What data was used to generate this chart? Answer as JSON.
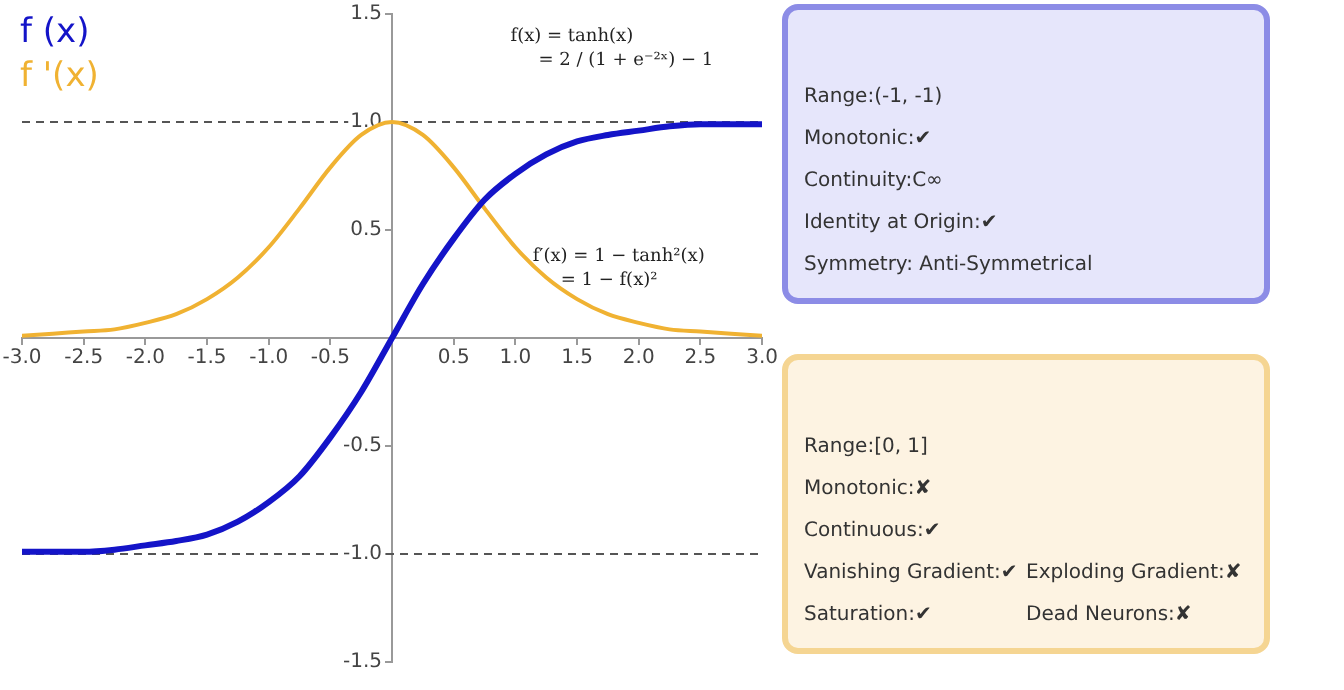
{
  "chart_data": [
    {
      "type": "line",
      "legend": "top left",
      "marker": "none",
      "line_style": "solid",
      "grid": false,
      "x": [
        -3,
        -2.75,
        -2.5,
        -2.25,
        -2,
        -1.75,
        -1.5,
        -1.25,
        -1,
        -0.75,
        -0.5,
        -0.25,
        0,
        0.25,
        0.5,
        0.75,
        1,
        1.25,
        1.5,
        1.75,
        2,
        2.25,
        2.5,
        2.75,
        3
      ],
      "series": [
        {
          "name": "f (x)",
          "color": "#1414c8",
          "values": [
            -0.99,
            -0.99,
            -0.99,
            -0.98,
            -0.96,
            -0.94,
            -0.91,
            -0.85,
            -0.76,
            -0.64,
            -0.46,
            -0.25,
            0,
            0.25,
            0.46,
            0.64,
            0.76,
            0.85,
            0.91,
            0.94,
            0.96,
            0.98,
            0.99,
            0.99,
            0.99
          ]
        },
        {
          "name": "f '(x)",
          "color": "#f0b232",
          "values": [
            0.01,
            0.02,
            0.03,
            0.04,
            0.07,
            0.11,
            0.18,
            0.28,
            0.42,
            0.6,
            0.79,
            0.94,
            1,
            0.94,
            0.79,
            0.6,
            0.42,
            0.28,
            0.18,
            0.11,
            0.07,
            0.04,
            0.03,
            0.02,
            0.01
          ]
        }
      ],
      "xlim": [
        -3,
        3
      ],
      "ylim": [
        -1.5,
        1.5
      ],
      "xticks": [
        {
          "value": -3,
          "label": "-3.0"
        },
        {
          "value": -2.5,
          "label": "-2.5"
        },
        {
          "value": -2,
          "label": "-2.0"
        },
        {
          "value": -1.5,
          "label": "-1.5"
        },
        {
          "value": -1,
          "label": "-1.0"
        },
        {
          "value": -0.5,
          "label": "-0.5"
        },
        {
          "value": 0.5,
          "label": "0.5"
        },
        {
          "value": 1,
          "label": "1.0"
        },
        {
          "value": 1.5,
          "label": "1.5"
        },
        {
          "value": 2,
          "label": "2.0"
        },
        {
          "value": 2.5,
          "label": "2.5"
        },
        {
          "value": 3,
          "label": "3.0"
        }
      ],
      "yticks": [
        {
          "value": -1.5,
          "label": "-1.5"
        },
        {
          "value": -1,
          "label": "-1.0"
        },
        {
          "value": -0.5,
          "label": "-0.5"
        },
        {
          "value": 0.5,
          "label": "0.5"
        },
        {
          "value": 1,
          "label": "1.0"
        },
        {
          "value": 1.5,
          "label": "1.5"
        }
      ],
      "ref_lines": [
        {
          "axis": "y",
          "value": 1,
          "color": "#555555",
          "line_style": "dashed"
        },
        {
          "axis": "y",
          "value": -1,
          "color": "#555555",
          "line_style": "dashed"
        }
      ],
      "annotations": [
        "f(x) = tanh(x)\n= 2 / (1 + e⁻²ˣ) − 1",
        "f′(x) = 1 − tanh²(x)\n= 1 − f(x)²"
      ]
    },
    {
      "type": "other",
      "annotations": [
        "Range:(-1, -1)",
        "Monotonic:✔",
        "Continuity:C∞",
        "Identity at Origin:✔",
        "Symmetry: Anti-Symmetrical"
      ]
    },
    {
      "type": "other",
      "annotations": [
        "Range:[0, 1]",
        "Monotonic:✘",
        "Continuous:✔",
        "Vanishing Gradient:✔",
        "Exploding Gradient:✘",
        "Saturation:✔",
        "Dead Neurons:✘"
      ]
    }
  ]
}
